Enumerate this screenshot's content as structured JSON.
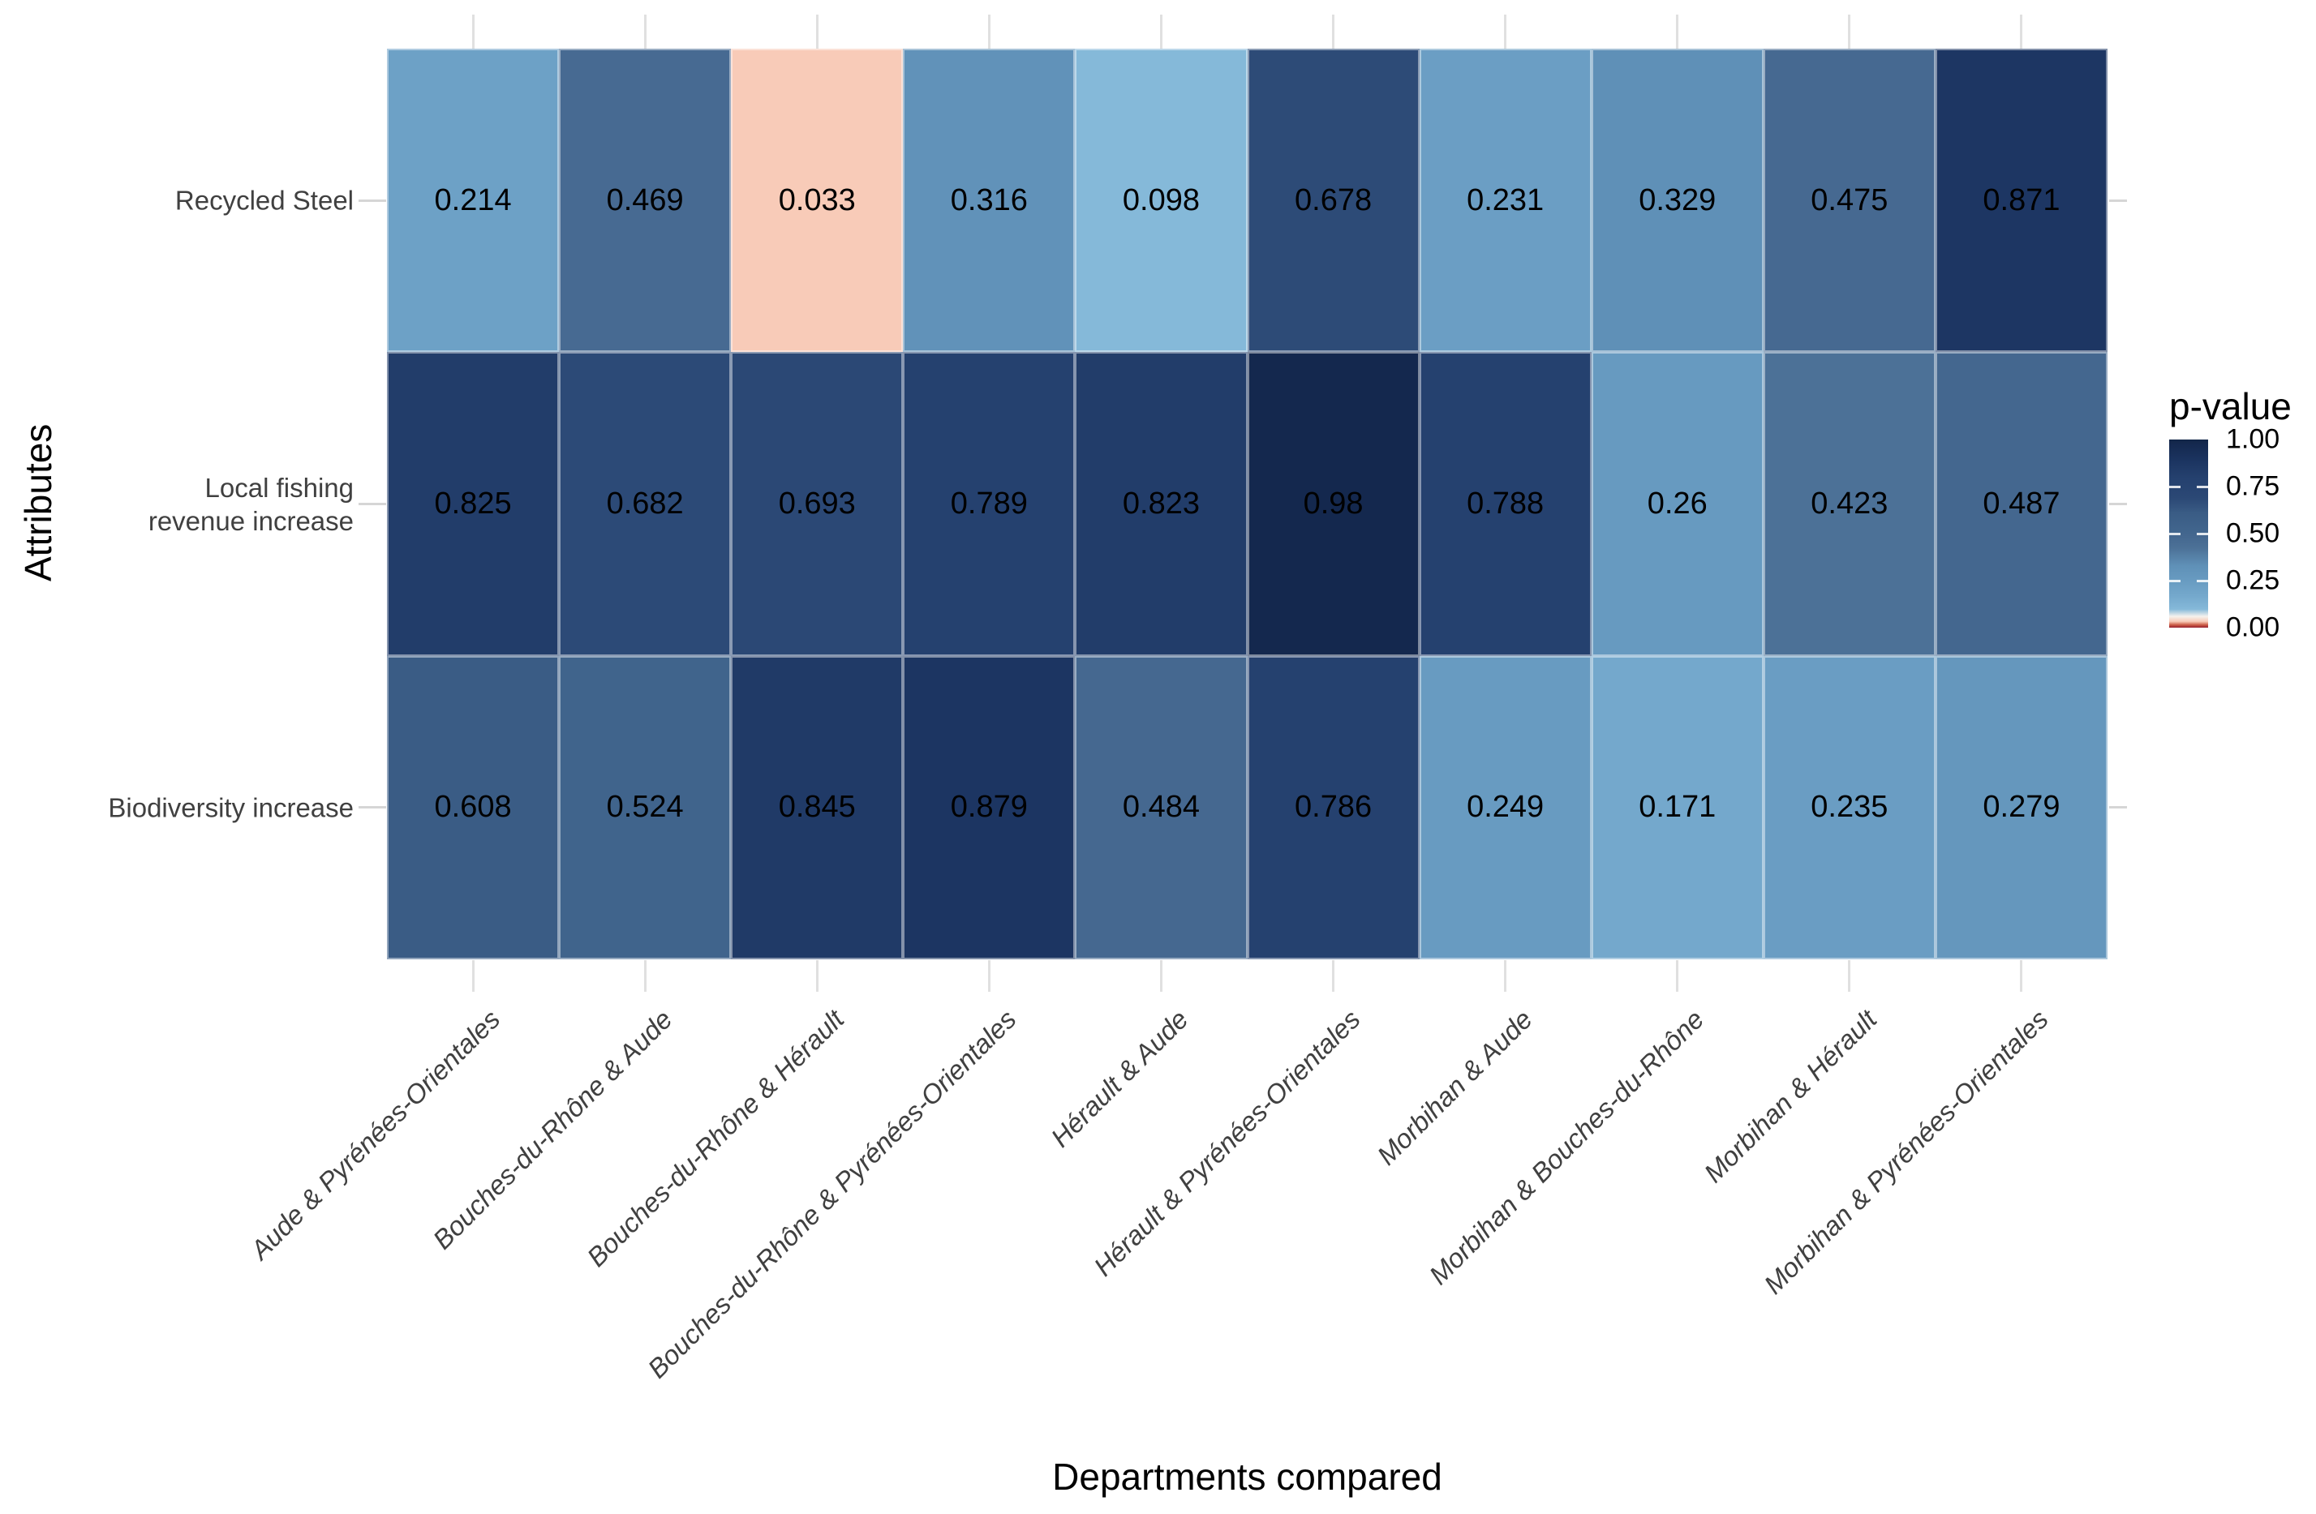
{
  "chart_data": {
    "type": "heatmap",
    "title": "",
    "xlabel": "Departments compared",
    "ylabel": "Attributes",
    "x_categories": [
      "Aude & Pyrénées-Orientales",
      "Bouches-du-Rhône & Aude",
      "Bouches-du-Rhône & Hérault",
      "Bouches-du-Rhône & Pyrénées-Orientales",
      "Hérault & Aude",
      "Hérault & Pyrénées-Orientales",
      "Morbihan & Aude",
      "Morbihan & Bouches-du-Rhône",
      "Morbihan & Hérault",
      "Morbihan & Pyrénées-Orientales"
    ],
    "y_categories": [
      "Recycled Steel",
      "Local fishing revenue increase",
      "Biodiversity increase"
    ],
    "y_display": [
      "Recycled Steel",
      "Local fishing\nrevenue increase",
      "Biodiversity increase"
    ],
    "values": [
      [
        0.214,
        0.469,
        0.033,
        0.316,
        0.098,
        0.678,
        0.231,
        0.329,
        0.475,
        0.871
      ],
      [
        0.825,
        0.682,
        0.693,
        0.789,
        0.823,
        0.98,
        0.788,
        0.26,
        0.423,
        0.487
      ],
      [
        0.608,
        0.524,
        0.845,
        0.879,
        0.484,
        0.786,
        0.249,
        0.171,
        0.235,
        0.279
      ]
    ],
    "value_labels": [
      [
        "0.214",
        "0.469",
        "0.033",
        "0.316",
        "0.098",
        "0.678",
        "0.231",
        "0.329",
        "0.475",
        "0.871"
      ],
      [
        "0.825",
        "0.682",
        "0.693",
        "0.789",
        "0.823",
        "0.98",
        "0.788",
        "0.26",
        "0.423",
        "0.487"
      ],
      [
        "0.608",
        "0.524",
        "0.845",
        "0.879",
        "0.484",
        "0.786",
        "0.249",
        "0.171",
        "0.235",
        "0.279"
      ]
    ],
    "legend_title": "p-value",
    "legend_ticks": [
      {
        "label": "1.00",
        "value": 1.0
      },
      {
        "label": "0.75",
        "value": 0.75
      },
      {
        "label": "0.50",
        "value": 0.5
      },
      {
        "label": "0.25",
        "value": 0.25
      },
      {
        "label": "0.00",
        "value": 0.0
      }
    ],
    "colorbar_range": [
      0,
      1
    ],
    "grid": "light vertical and horizontal segments outside tile area",
    "legend_position": "right",
    "color_scale": {
      "description": "diverging red-white-blue, white near 0.05 significance threshold",
      "stops": [
        {
          "v": 0.0,
          "c": "#96202E"
        },
        {
          "v": 0.015,
          "c": "#CE5F47"
        },
        {
          "v": 0.033,
          "c": "#F8CBB8"
        },
        {
          "v": 0.06,
          "c": "#F5F2EE"
        },
        {
          "v": 0.098,
          "c": "#85B9D9"
        },
        {
          "v": 0.171,
          "c": "#74A8CC"
        },
        {
          "v": 0.25,
          "c": "#689BC1"
        },
        {
          "v": 0.33,
          "c": "#5F90B7"
        },
        {
          "v": 0.423,
          "c": "#4C7197"
        },
        {
          "v": 0.49,
          "c": "#44678F"
        },
        {
          "v": 0.524,
          "c": "#40648C"
        },
        {
          "v": 0.608,
          "c": "#3A5C85"
        },
        {
          "v": 0.69,
          "c": "#2B4875"
        },
        {
          "v": 0.79,
          "c": "#25416F"
        },
        {
          "v": 0.825,
          "c": "#223D6A"
        },
        {
          "v": 0.88,
          "c": "#1C3562"
        },
        {
          "v": 0.98,
          "c": "#14284E"
        },
        {
          "v": 1.0,
          "c": "#122647"
        }
      ]
    },
    "style_colors": {
      "background": "#FFFFFF",
      "axis_text": "#404040",
      "gridline": "#E0E0E0",
      "tick": "#D6D6D6",
      "cell_text": "#000000"
    }
  }
}
